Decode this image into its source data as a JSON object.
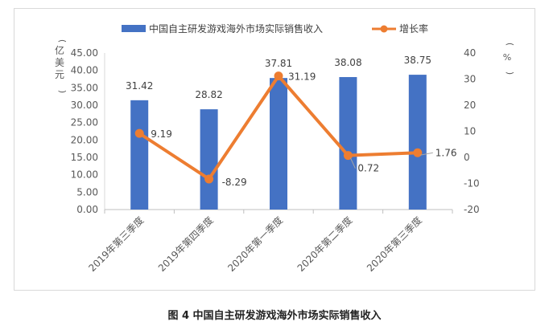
{
  "caption": "图 4  中国自主研发游戏海外市场实际销售收入",
  "chart_data": {
    "type": "bar",
    "categories": [
      "2019年第三季度",
      "2019年第四季度",
      "2020年第一季度",
      "2020年第二季度",
      "2020年第三季度"
    ],
    "series": [
      {
        "name": "中国自主研发游戏海外市场实际销售收入",
        "type": "bar",
        "axis": "left",
        "values": [
          31.42,
          28.82,
          37.81,
          38.08,
          38.75
        ]
      },
      {
        "name": "增长率",
        "type": "line",
        "axis": "right",
        "values": [
          9.19,
          -8.29,
          31.19,
          0.72,
          1.76
        ]
      }
    ],
    "ylabel_left": "亿美元",
    "ylabel_right": "%",
    "ylim_left": [
      0,
      45
    ],
    "yticks_left": [
      "0.00",
      "5.00",
      "10.00",
      "15.00",
      "20.00",
      "25.00",
      "30.00",
      "35.00",
      "40.00",
      "45.00"
    ],
    "ylim_right": [
      -20,
      40
    ],
    "yticks_right": [
      "-20",
      "-10",
      "0",
      "10",
      "20",
      "30",
      "40"
    ],
    "legend_position": "top",
    "grid": false,
    "colors": {
      "bar": "#4472C4",
      "line": "#ED7D31"
    }
  }
}
